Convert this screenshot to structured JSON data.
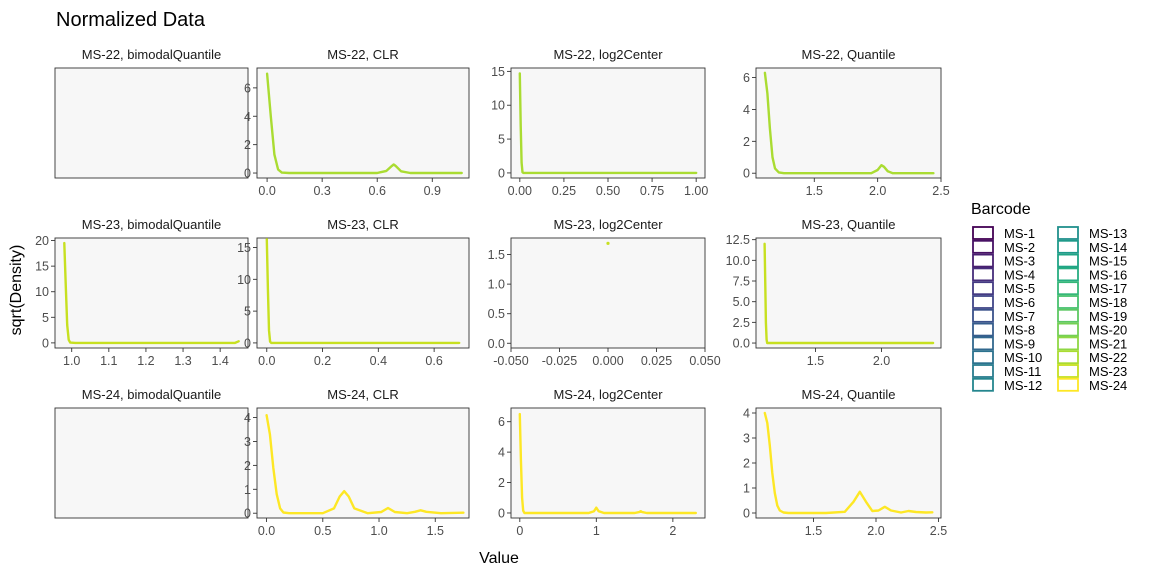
{
  "chart_data": {
    "type": "line",
    "title": "Normalized Data",
    "xlabel": "Value",
    "ylabel": "sqrt(Density)",
    "legend": {
      "title": "Barcode",
      "placement": "right",
      "entries": [
        {
          "name": "MS-1",
          "color": "#440154"
        },
        {
          "name": "MS-2",
          "color": "#471164"
        },
        {
          "name": "MS-3",
          "color": "#481F70"
        },
        {
          "name": "MS-4",
          "color": "#472D7B"
        },
        {
          "name": "MS-5",
          "color": "#443A83"
        },
        {
          "name": "MS-6",
          "color": "#404688"
        },
        {
          "name": "MS-7",
          "color": "#3B528B"
        },
        {
          "name": "MS-8",
          "color": "#365D8D"
        },
        {
          "name": "MS-9",
          "color": "#31688E"
        },
        {
          "name": "MS-10",
          "color": "#2C728E"
        },
        {
          "name": "MS-11",
          "color": "#287C8E"
        },
        {
          "name": "MS-12",
          "color": "#24868E"
        },
        {
          "name": "MS-13",
          "color": "#21908C"
        },
        {
          "name": "MS-14",
          "color": "#1F9A8A"
        },
        {
          "name": "MS-15",
          "color": "#20A486"
        },
        {
          "name": "MS-16",
          "color": "#27AD81"
        },
        {
          "name": "MS-17",
          "color": "#35B779"
        },
        {
          "name": "MS-18",
          "color": "#47C16E"
        },
        {
          "name": "MS-19",
          "color": "#5DC863"
        },
        {
          "name": "MS-20",
          "color": "#75D054"
        },
        {
          "name": "MS-21",
          "color": "#8FD744"
        },
        {
          "name": "MS-22",
          "color": "#AADC32"
        },
        {
          "name": "MS-23",
          "color": "#C7E020"
        },
        {
          "name": "MS-24",
          "color": "#FDE725"
        }
      ]
    },
    "panels": [
      {
        "label": "MS-22, bimodalQuantile",
        "empty": true
      },
      {
        "label": "MS-22, CLR",
        "color": "#AADC32",
        "xlim": [
          -0.055,
          1.1
        ],
        "ylim": [
          -0.35,
          7.4
        ],
        "xticks": [
          0.0,
          0.3,
          0.6,
          0.9
        ],
        "xtick_labels": [
          "0.0",
          "0.3",
          "0.6",
          "0.9"
        ],
        "yticks": [
          0,
          2,
          4,
          6
        ],
        "ytick_labels": [
          "0",
          "2",
          "4",
          "6"
        ],
        "x": [
          0.0,
          0.02,
          0.04,
          0.06,
          0.08,
          0.12,
          0.3,
          0.6,
          0.65,
          0.68,
          0.69,
          0.7,
          0.73,
          0.78,
          1.0,
          1.06
        ],
        "y": [
          7.0,
          4.0,
          1.3,
          0.25,
          0.03,
          0.0,
          0.0,
          0.0,
          0.15,
          0.5,
          0.6,
          0.5,
          0.12,
          0.0,
          0.0,
          0.0
        ]
      },
      {
        "label": "MS-22, log2Center",
        "color": "#AADC32",
        "xlim": [
          -0.05,
          1.05
        ],
        "ylim": [
          -0.75,
          15.5
        ],
        "xticks": [
          0.0,
          0.25,
          0.5,
          0.75,
          1.0
        ],
        "xtick_labels": [
          "0.00",
          "0.25",
          "0.50",
          "0.75",
          "1.00"
        ],
        "yticks": [
          0,
          5,
          10,
          15
        ],
        "ytick_labels": [
          "0",
          "5",
          "10",
          "15"
        ],
        "x": [
          0.0,
          0.005,
          0.01,
          0.015,
          0.02,
          0.1,
          1.0
        ],
        "y": [
          14.7,
          7.0,
          1.5,
          0.1,
          0.0,
          0.0,
          0.0
        ]
      },
      {
        "label": "MS-22, Quantile",
        "color": "#AADC32",
        "xlim": [
          1.04,
          2.5
        ],
        "ylim": [
          -0.3,
          6.6
        ],
        "xticks": [
          1.5,
          2.0,
          2.5
        ],
        "xtick_labels": [
          "1.5",
          "2.0",
          "2.5"
        ],
        "yticks": [
          0,
          2,
          4,
          6
        ],
        "ytick_labels": [
          "0",
          "2",
          "4",
          "6"
        ],
        "x": [
          1.11,
          1.13,
          1.15,
          1.17,
          1.19,
          1.22,
          1.26,
          1.5,
          1.95,
          2.0,
          2.03,
          2.05,
          2.08,
          2.12,
          2.3,
          2.44
        ],
        "y": [
          6.3,
          5.0,
          2.8,
          1.0,
          0.3,
          0.05,
          0.0,
          0.0,
          0.0,
          0.2,
          0.5,
          0.4,
          0.12,
          0.0,
          0.0,
          0.0
        ]
      },
      {
        "label": "MS-23, bimodalQuantile",
        "color": "#C7E020",
        "xlim": [
          0.955,
          1.475
        ],
        "ylim": [
          -1.0,
          20.5
        ],
        "xticks": [
          1.0,
          1.1,
          1.2,
          1.3,
          1.4
        ],
        "xtick_labels": [
          "1.0",
          "1.1",
          "1.2",
          "1.3",
          "1.4"
        ],
        "yticks": [
          0,
          5,
          10,
          15,
          20
        ],
        "ytick_labels": [
          "0",
          "5",
          "10",
          "15",
          "20"
        ],
        "x": [
          0.98,
          0.984,
          0.988,
          0.992,
          0.996,
          1.01,
          1.2,
          1.44,
          1.45
        ],
        "y": [
          19.5,
          11.0,
          3.5,
          0.6,
          0.05,
          0.0,
          0.0,
          0.0,
          0.3
        ]
      },
      {
        "label": "MS-23, CLR",
        "color": "#C7E020",
        "xlim": [
          -0.035,
          0.725
        ],
        "ylim": [
          -0.8,
          16.5
        ],
        "xticks": [
          0.0,
          0.2,
          0.4,
          0.6
        ],
        "xtick_labels": [
          "0.0",
          "0.2",
          "0.4",
          "0.6"
        ],
        "yticks": [
          0,
          5,
          10,
          15
        ],
        "ytick_labels": [
          "0",
          "5",
          "10",
          "15"
        ],
        "x": [
          0.0,
          0.004,
          0.008,
          0.012,
          0.016,
          0.05,
          0.69
        ],
        "y": [
          16.3,
          8.5,
          2.0,
          0.2,
          0.0,
          0.0,
          0.0
        ]
      },
      {
        "label": "MS-23, log2Center",
        "color": "#C7E020",
        "xlim": [
          -0.05,
          0.05
        ],
        "ylim": [
          -0.08,
          1.78
        ],
        "xticks": [
          -0.05,
          -0.025,
          0.0,
          0.025,
          0.05
        ],
        "xtick_labels": [
          "-0.050",
          "-0.025",
          "0.000",
          "0.025",
          "0.050"
        ],
        "yticks": [
          0.0,
          0.5,
          1.0,
          1.5
        ],
        "ytick_labels": [
          "0.0",
          "0.5",
          "1.0",
          "1.5"
        ],
        "x": [
          0.0
        ],
        "y": [
          1.69
        ],
        "point": true
      },
      {
        "label": "MS-23, Quantile",
        "color": "#C7E020",
        "xlim": [
          1.05,
          2.45
        ],
        "ylim": [
          -0.6,
          12.7
        ],
        "xticks": [
          1.5,
          2.0
        ],
        "xtick_labels": [
          "1.5",
          "2.0"
        ],
        "yticks": [
          0.0,
          2.5,
          5.0,
          7.5,
          10.0,
          12.5
        ],
        "ytick_labels": [
          "0.0",
          "2.5",
          "5.0",
          "7.5",
          "10.0",
          "12.5"
        ],
        "x": [
          1.115,
          1.12,
          1.125,
          1.13,
          1.135,
          1.16,
          1.6,
          2.39
        ],
        "y": [
          12.0,
          7.0,
          2.5,
          0.4,
          0.0,
          0.0,
          0.0,
          0.0
        ]
      },
      {
        "label": "MS-24, bimodalQuantile",
        "empty": true
      },
      {
        "label": "MS-24, CLR",
        "color": "#FDE725",
        "xlim": [
          -0.085,
          1.8
        ],
        "ylim": [
          -0.2,
          4.4
        ],
        "xticks": [
          0.0,
          0.5,
          1.0,
          1.5
        ],
        "xtick_labels": [
          "0.0",
          "0.5",
          "1.0",
          "1.5"
        ],
        "yticks": [
          0,
          1,
          2,
          3,
          4
        ],
        "ytick_labels": [
          "0",
          "1",
          "2",
          "3",
          "4"
        ],
        "x": [
          0.0,
          0.03,
          0.06,
          0.09,
          0.12,
          0.15,
          0.2,
          0.5,
          0.6,
          0.65,
          0.69,
          0.73,
          0.78,
          0.9,
          1.02,
          1.08,
          1.14,
          1.25,
          1.32,
          1.37,
          1.42,
          1.55,
          1.75
        ],
        "y": [
          4.1,
          3.3,
          1.9,
          0.8,
          0.2,
          0.03,
          0.0,
          0.0,
          0.2,
          0.7,
          0.92,
          0.7,
          0.2,
          0.0,
          0.05,
          0.22,
          0.05,
          0.0,
          0.06,
          0.12,
          0.06,
          0.0,
          0.02
        ]
      },
      {
        "label": "MS-24, log2Center",
        "color": "#FDE725",
        "xlim": [
          -0.115,
          2.42
        ],
        "ylim": [
          -0.33,
          6.9
        ],
        "xticks": [
          0.0,
          1.0,
          2.0
        ],
        "xtick_labels": [
          "0",
          "1",
          "2"
        ],
        "yticks": [
          0,
          2,
          4,
          6
        ],
        "ytick_labels": [
          "0",
          "2",
          "4",
          "6"
        ],
        "x": [
          0.0,
          0.015,
          0.03,
          0.045,
          0.06,
          0.1,
          0.9,
          0.97,
          1.0,
          1.03,
          1.1,
          1.5,
          1.56,
          1.58,
          1.6,
          1.66,
          2.3
        ],
        "y": [
          6.5,
          3.5,
          1.0,
          0.15,
          0.0,
          0.0,
          0.0,
          0.12,
          0.35,
          0.12,
          0.0,
          0.0,
          0.06,
          0.12,
          0.06,
          0.0,
          0.0
        ]
      },
      {
        "label": "MS-24, Quantile",
        "color": "#FDE725",
        "xlim": [
          1.04,
          2.52
        ],
        "ylim": [
          -0.2,
          4.2
        ],
        "xticks": [
          1.5,
          2.0,
          2.5
        ],
        "xtick_labels": [
          "1.5",
          "2.0",
          "2.5"
        ],
        "yticks": [
          0,
          1,
          2,
          3,
          4
        ],
        "ytick_labels": [
          "0",
          "1",
          "2",
          "3",
          "4"
        ],
        "x": [
          1.11,
          1.13,
          1.15,
          1.17,
          1.19,
          1.21,
          1.23,
          1.26,
          1.3,
          1.6,
          1.75,
          1.82,
          1.87,
          1.92,
          1.97,
          2.02,
          2.07,
          2.12,
          2.2,
          2.26,
          2.32,
          2.4,
          2.45
        ],
        "y": [
          4.0,
          3.6,
          2.7,
          1.6,
          0.8,
          0.3,
          0.1,
          0.02,
          0.0,
          0.0,
          0.05,
          0.45,
          0.85,
          0.45,
          0.08,
          0.1,
          0.25,
          0.1,
          0.02,
          0.08,
          0.04,
          0.02,
          0.03
        ]
      }
    ]
  }
}
